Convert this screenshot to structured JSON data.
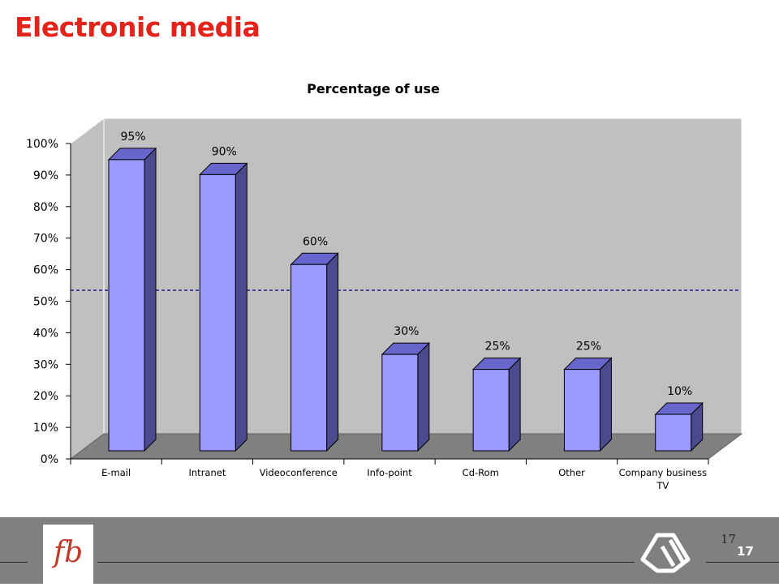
{
  "slide": {
    "title": "Electronic media",
    "page_number_serif": "17",
    "page_number_bold": "17",
    "logo_text": "fb"
  },
  "colors": {
    "title": "#e4231b",
    "bar_front": "#9999ff",
    "bar_top": "#6666cc",
    "bar_side": "#4a4a8f",
    "wall": "#c0c0c0",
    "floor": "#808080",
    "reference_line": "#000080",
    "footer": "#808080"
  },
  "chart_data": {
    "type": "bar",
    "title": "Percentage of use",
    "categories": [
      "E-mail",
      "Intranet",
      "Videoconference",
      "Info-point",
      "Cd-Rom",
      "Other",
      "Company business TV"
    ],
    "values": [
      95,
      90,
      60,
      30,
      25,
      25,
      10
    ],
    "data_labels": [
      "95%",
      "90%",
      "60%",
      "30%",
      "25%",
      "25%",
      "10%"
    ],
    "yticks": [
      "0%",
      "10%",
      "20%",
      "30%",
      "40%",
      "50%",
      "60%",
      "70%",
      "80%",
      "90%",
      "100%"
    ],
    "ylim": [
      0,
      100
    ],
    "reference_line": 50,
    "style": "3d-column",
    "grid": false,
    "legend": false
  }
}
